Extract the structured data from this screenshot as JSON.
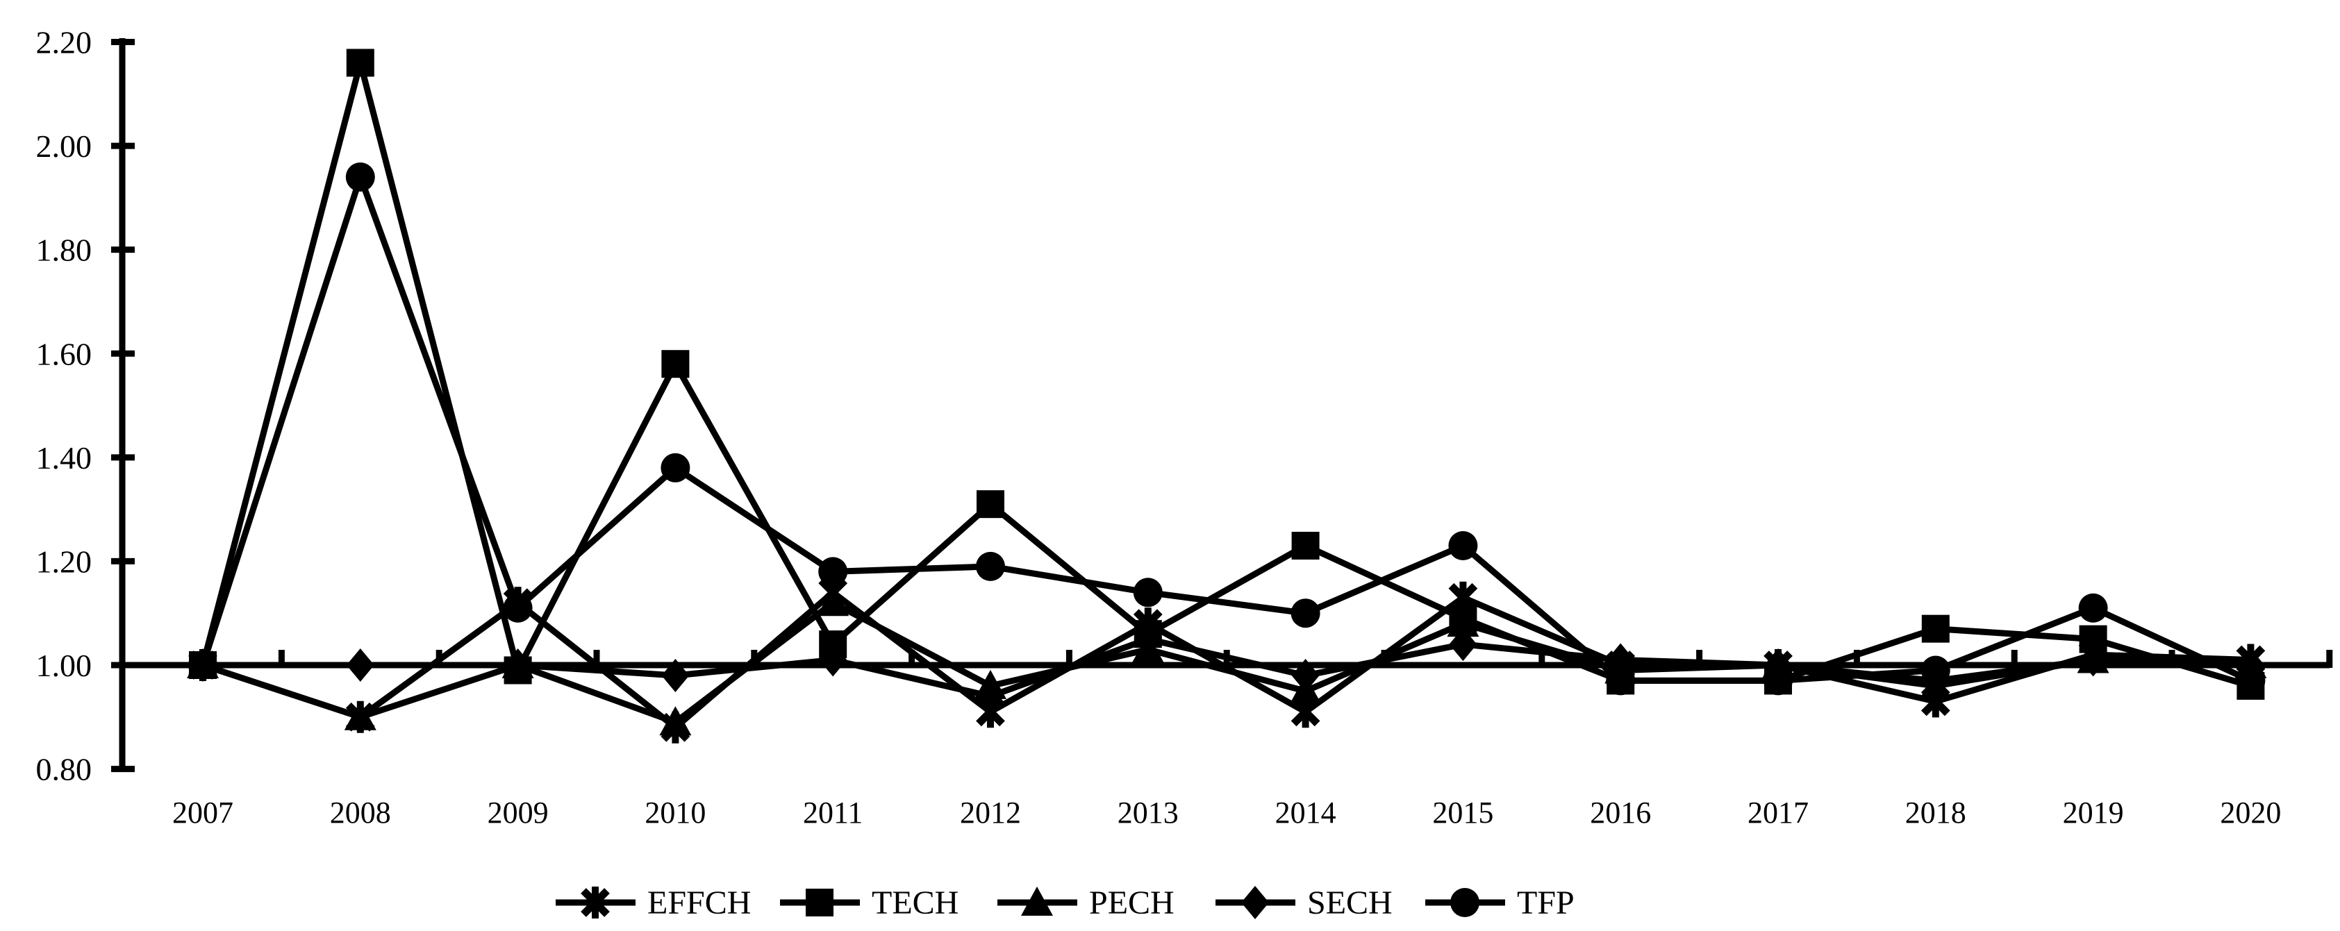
{
  "chart_data": {
    "type": "line",
    "title": "",
    "xlabel": "",
    "ylabel": "",
    "x": [
      "2007",
      "2008",
      "2009",
      "2010",
      "2011",
      "2012",
      "2013",
      "2014",
      "2015",
      "2016",
      "2017",
      "2018",
      "2019",
      "2020"
    ],
    "series": [
      {
        "name": "EFFCH",
        "marker": "star",
        "values": [
          1.0,
          0.9,
          1.12,
          0.88,
          1.14,
          0.91,
          1.08,
          0.91,
          1.13,
          1.0,
          1.0,
          0.93,
          1.02,
          1.01
        ]
      },
      {
        "name": "TECH",
        "marker": "square",
        "values": [
          1.0,
          2.16,
          0.99,
          1.58,
          1.04,
          1.31,
          1.06,
          1.23,
          1.09,
          0.97,
          0.97,
          1.07,
          1.05,
          0.96
        ]
      },
      {
        "name": "PECH",
        "marker": "triangle",
        "values": [
          1.0,
          0.9,
          1.0,
          0.89,
          1.12,
          0.96,
          1.03,
          0.95,
          1.08,
          0.99,
          1.0,
          0.96,
          1.01,
          1.0
        ]
      },
      {
        "name": "SECH",
        "marker": "diamond",
        "values": [
          1.0,
          1.0,
          1.0,
          0.98,
          1.01,
          0.94,
          1.05,
          0.98,
          1.04,
          1.01,
          1.0,
          0.97,
          1.01,
          1.0
        ]
      },
      {
        "name": "TFP",
        "marker": "circle",
        "values": [
          1.0,
          1.94,
          1.11,
          1.38,
          1.18,
          1.19,
          1.14,
          1.1,
          1.23,
          0.97,
          0.97,
          0.99,
          1.11,
          0.97
        ]
      }
    ],
    "ylim": [
      0.8,
      2.2
    ],
    "yticks": [
      0.8,
      1.0,
      1.2,
      1.4,
      1.6,
      1.8,
      2.0,
      2.2
    ],
    "ytick_labels": [
      "0.80",
      "1.00",
      "1.20",
      "1.40",
      "1.60",
      "1.80",
      "2.00",
      "2.20"
    ],
    "axis_cross_y": 1.0,
    "grid": false,
    "legend_position": "bottom",
    "line_color": "#000000",
    "background_color": "#ffffff"
  }
}
